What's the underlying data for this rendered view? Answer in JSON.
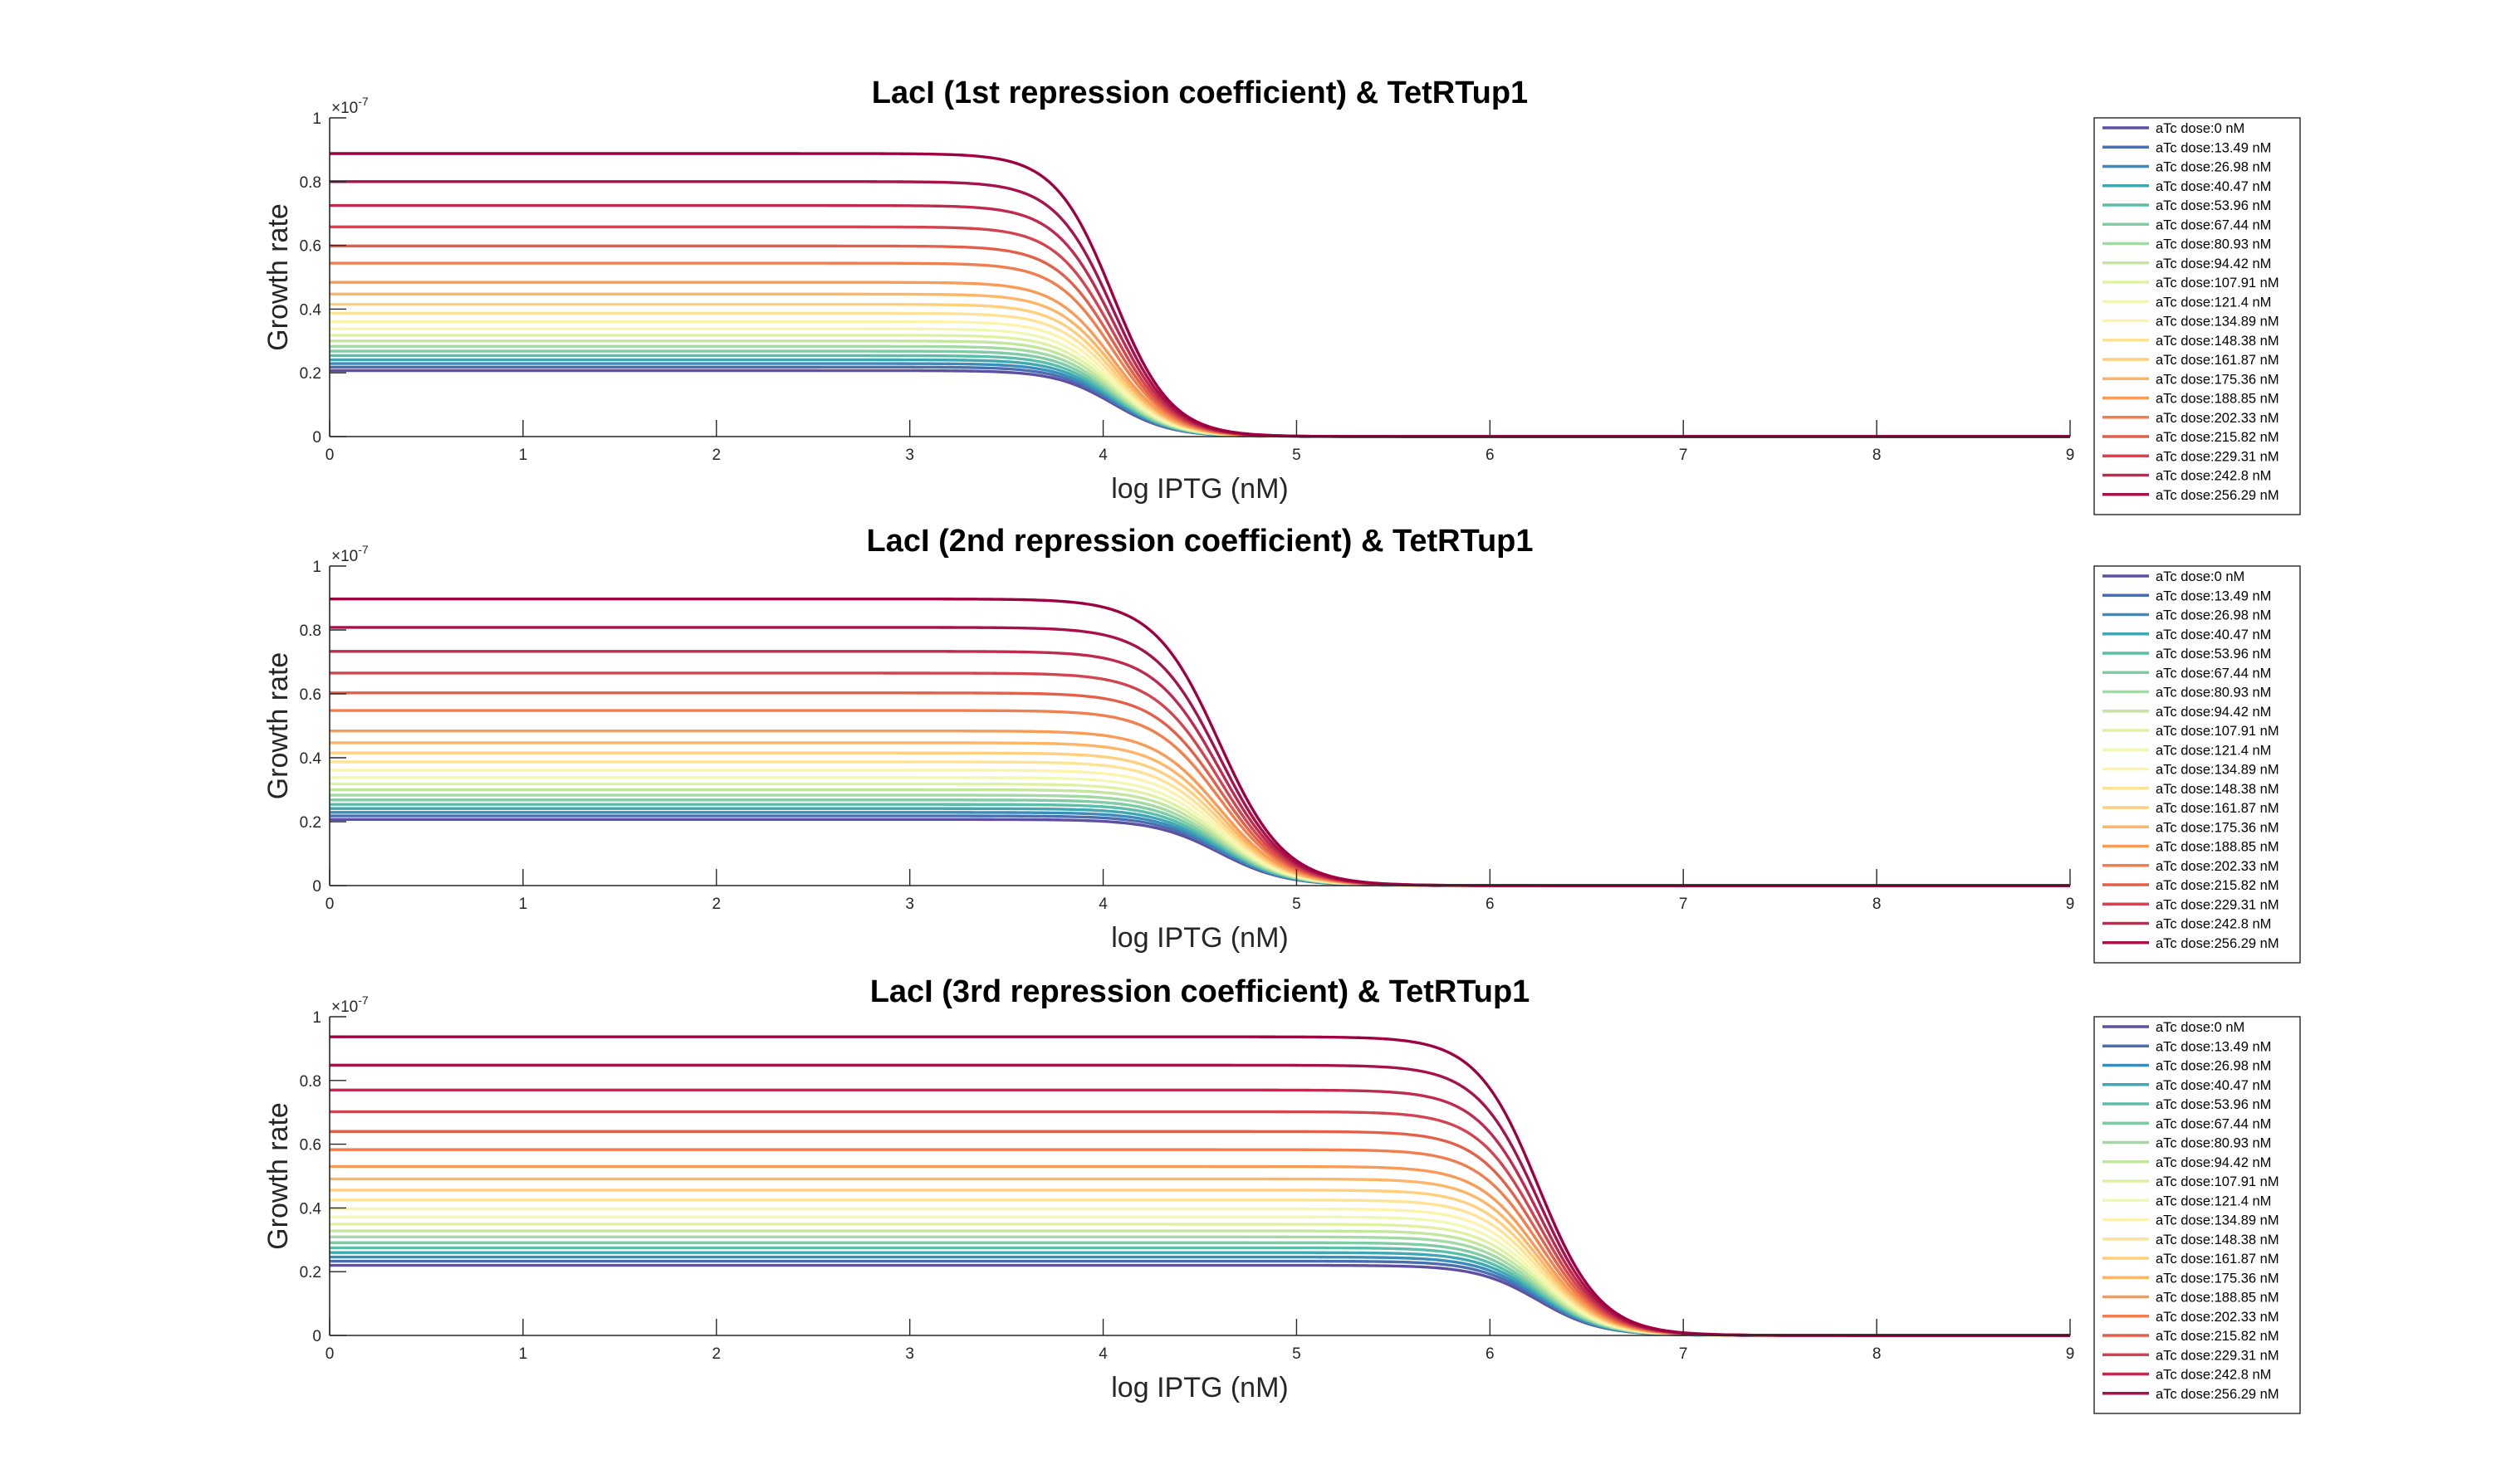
{
  "figure": {
    "background": "#ffffff",
    "axis_color": "#262626"
  },
  "chart_data": [
    {
      "type": "line",
      "title": "LacI (1st repression coefficient) & TetRTup1",
      "xlabel": "log IPTG (nM)",
      "ylabel": "Growth rate",
      "xlim": [
        0,
        9
      ],
      "ylim": [
        0,
        1
      ],
      "xticks": [
        "0",
        "1",
        "2",
        "3",
        "4",
        "5",
        "6",
        "7",
        "8",
        "9"
      ],
      "yticks": [
        "0",
        "0.2",
        "0.4",
        "0.6",
        "0.8",
        "1"
      ],
      "y_exponent": "×10",
      "y_exponent_power": "-7",
      "grid": false,
      "legend": "right",
      "curve_shape": {
        "type": "hill",
        "midpoint": 4.05,
        "hill_coefficient": 0.15
      },
      "series": [
        {
          "name": "aTc dose:0 nM",
          "plateau": 0.207,
          "color": "#5e4fa2"
        },
        {
          "name": "aTc dose:13.49 nM",
          "plateau": 0.218,
          "color": "#4a6fb1"
        },
        {
          "name": "aTc dose:26.98 nM",
          "plateau": 0.229,
          "color": "#3a8cba"
        },
        {
          "name": "aTc dose:40.47 nM",
          "plateau": 0.241,
          "color": "#3fa7b2"
        },
        {
          "name": "aTc dose:53.96 nM",
          "plateau": 0.254,
          "color": "#5bbea9"
        },
        {
          "name": "aTc dose:67.44 nM",
          "plateau": 0.268,
          "color": "#7fcba4"
        },
        {
          "name": "aTc dose:80.93 nM",
          "plateau": 0.283,
          "color": "#a3d9a4"
        },
        {
          "name": "aTc dose:94.42 nM",
          "plateau": 0.3,
          "color": "#c3e69f"
        },
        {
          "name": "aTc dose:107.91 nM",
          "plateau": 0.318,
          "color": "#dff1a3"
        },
        {
          "name": "aTc dose:121.4 nM",
          "plateau": 0.338,
          "color": "#f1f8b3"
        },
        {
          "name": "aTc dose:134.89 nM",
          "plateau": 0.361,
          "color": "#fdf3ac"
        },
        {
          "name": "aTc dose:148.38 nM",
          "plateau": 0.387,
          "color": "#fee394"
        },
        {
          "name": "aTc dose:161.87 nM",
          "plateau": 0.415,
          "color": "#fecf7c"
        },
        {
          "name": "aTc dose:175.36 nM",
          "plateau": 0.447,
          "color": "#fdb567"
        },
        {
          "name": "aTc dose:188.85 nM",
          "plateau": 0.484,
          "color": "#f99a57"
        },
        {
          "name": "aTc dose:202.33 nM",
          "plateau": 0.544,
          "color": "#f27d4d"
        },
        {
          "name": "aTc dose:215.82 nM",
          "plateau": 0.598,
          "color": "#e45f49"
        },
        {
          "name": "aTc dose:229.31 nM",
          "plateau": 0.658,
          "color": "#d44350"
        },
        {
          "name": "aTc dose:242.8 nM",
          "plateau": 0.725,
          "color": "#bf2a4e"
        },
        {
          "name": "aTc dose:256.29 nM",
          "plateau": 0.8,
          "color": "#a6124c"
        },
        {
          "name": "",
          "plateau": 0.888,
          "color": "#9e0142"
        }
      ]
    },
    {
      "type": "line",
      "title": "LacI (2nd repression coefficient) & TetRTup1",
      "xlabel": "log IPTG (nM)",
      "ylabel": "Growth rate",
      "xlim": [
        0,
        9
      ],
      "ylim": [
        0,
        1
      ],
      "xticks": [
        "0",
        "1",
        "2",
        "3",
        "4",
        "5",
        "6",
        "7",
        "8",
        "9"
      ],
      "yticks": [
        "0",
        "0.2",
        "0.4",
        "0.6",
        "0.8",
        "1"
      ],
      "y_exponent": "×10",
      "y_exponent_power": "-7",
      "grid": false,
      "legend": "right",
      "curve_shape": {
        "type": "hill",
        "midpoint": 4.6,
        "hill_coefficient": 0.17
      },
      "series": [
        {
          "name": "aTc dose:0 nM",
          "plateau": 0.207,
          "color": "#5e4fa2"
        },
        {
          "name": "aTc dose:13.49 nM",
          "plateau": 0.218,
          "color": "#4a6fb1"
        },
        {
          "name": "aTc dose:26.98 nM",
          "plateau": 0.229,
          "color": "#3a8cba"
        },
        {
          "name": "aTc dose:40.47 nM",
          "plateau": 0.241,
          "color": "#3fa7b2"
        },
        {
          "name": "aTc dose:53.96 nM",
          "plateau": 0.254,
          "color": "#5bbea9"
        },
        {
          "name": "aTc dose:67.44 nM",
          "plateau": 0.268,
          "color": "#7fcba4"
        },
        {
          "name": "aTc dose:80.93 nM",
          "plateau": 0.283,
          "color": "#a3d9a4"
        },
        {
          "name": "aTc dose:94.42 nM",
          "plateau": 0.3,
          "color": "#c3e69f"
        },
        {
          "name": "aTc dose:107.91 nM",
          "plateau": 0.318,
          "color": "#dff1a3"
        },
        {
          "name": "aTc dose:121.4 nM",
          "plateau": 0.338,
          "color": "#f1f8b3"
        },
        {
          "name": "aTc dose:134.89 nM",
          "plateau": 0.361,
          "color": "#fdf3ac"
        },
        {
          "name": "aTc dose:148.38 nM",
          "plateau": 0.387,
          "color": "#fee394"
        },
        {
          "name": "aTc dose:161.87 nM",
          "plateau": 0.415,
          "color": "#fecf7c"
        },
        {
          "name": "aTc dose:175.36 nM",
          "plateau": 0.447,
          "color": "#fdb567"
        },
        {
          "name": "aTc dose:188.85 nM",
          "plateau": 0.484,
          "color": "#f99a57"
        },
        {
          "name": "aTc dose:202.33 nM",
          "plateau": 0.548,
          "color": "#f27d4d"
        },
        {
          "name": "aTc dose:215.82 nM",
          "plateau": 0.603,
          "color": "#e45f49"
        },
        {
          "name": "aTc dose:229.31 nM",
          "plateau": 0.665,
          "color": "#d44350"
        },
        {
          "name": "aTc dose:242.8 nM",
          "plateau": 0.733,
          "color": "#bf2a4e"
        },
        {
          "name": "aTc dose:256.29 nM",
          "plateau": 0.808,
          "color": "#a6124c"
        },
        {
          "name": "",
          "plateau": 0.897,
          "color": "#9e0142"
        }
      ]
    },
    {
      "type": "line",
      "title": "LacI (3rd repression coefficient) & TetRTup1",
      "xlabel": "log IPTG (nM)",
      "ylabel": "Growth rate",
      "xlim": [
        0,
        9
      ],
      "ylim": [
        0,
        1
      ],
      "xticks": [
        "0",
        "1",
        "2",
        "3",
        "4",
        "5",
        "6",
        "7",
        "8",
        "9"
      ],
      "yticks": [
        "0",
        "0.2",
        "0.4",
        "0.6",
        "0.8",
        "1"
      ],
      "y_exponent": "×10",
      "y_exponent_power": "-7",
      "grid": false,
      "legend": "right",
      "curve_shape": {
        "type": "hill",
        "midpoint": 6.25,
        "hill_coefficient": 0.16
      },
      "series": [
        {
          "name": "aTc dose:0 nM",
          "plateau": 0.22,
          "color": "#5e4fa2"
        },
        {
          "name": "aTc dose:13.49 nM",
          "plateau": 0.233,
          "color": "#4a6fb1"
        },
        {
          "name": "aTc dose:26.98 nM",
          "plateau": 0.246,
          "color": "#3a8cba"
        },
        {
          "name": "aTc dose:40.47 nM",
          "plateau": 0.26,
          "color": "#3fa7b2"
        },
        {
          "name": "aTc dose:53.96 nM",
          "plateau": 0.275,
          "color": "#5bbea9"
        },
        {
          "name": "aTc dose:67.44 nM",
          "plateau": 0.291,
          "color": "#7fcba4"
        },
        {
          "name": "aTc dose:80.93 nM",
          "plateau": 0.309,
          "color": "#a3d9a4"
        },
        {
          "name": "aTc dose:94.42 nM",
          "plateau": 0.328,
          "color": "#c3e69f"
        },
        {
          "name": "aTc dose:107.91 nM",
          "plateau": 0.349,
          "color": "#dff1a3"
        },
        {
          "name": "aTc dose:121.4 nM",
          "plateau": 0.372,
          "color": "#f1f8b3"
        },
        {
          "name": "aTc dose:134.89 nM",
          "plateau": 0.397,
          "color": "#fdf3ac"
        },
        {
          "name": "aTc dose:148.38 nM",
          "plateau": 0.425,
          "color": "#fee394"
        },
        {
          "name": "aTc dose:161.87 nM",
          "plateau": 0.456,
          "color": "#fecf7c"
        },
        {
          "name": "aTc dose:175.36 nM",
          "plateau": 0.491,
          "color": "#fdb567"
        },
        {
          "name": "aTc dose:188.85 nM",
          "plateau": 0.53,
          "color": "#f99a57"
        },
        {
          "name": "aTc dose:202.33 nM",
          "plateau": 0.583,
          "color": "#f27d4d"
        },
        {
          "name": "aTc dose:215.82 nM",
          "plateau": 0.64,
          "color": "#e45f49"
        },
        {
          "name": "aTc dose:229.31 nM",
          "plateau": 0.702,
          "color": "#d44350"
        },
        {
          "name": "aTc dose:242.8 nM",
          "plateau": 0.77,
          "color": "#bf2a4e"
        },
        {
          "name": "aTc dose:256.29 nM",
          "plateau": 0.848,
          "color": "#a6124c"
        },
        {
          "name": "",
          "plateau": 0.937,
          "color": "#9e0142"
        }
      ]
    }
  ]
}
